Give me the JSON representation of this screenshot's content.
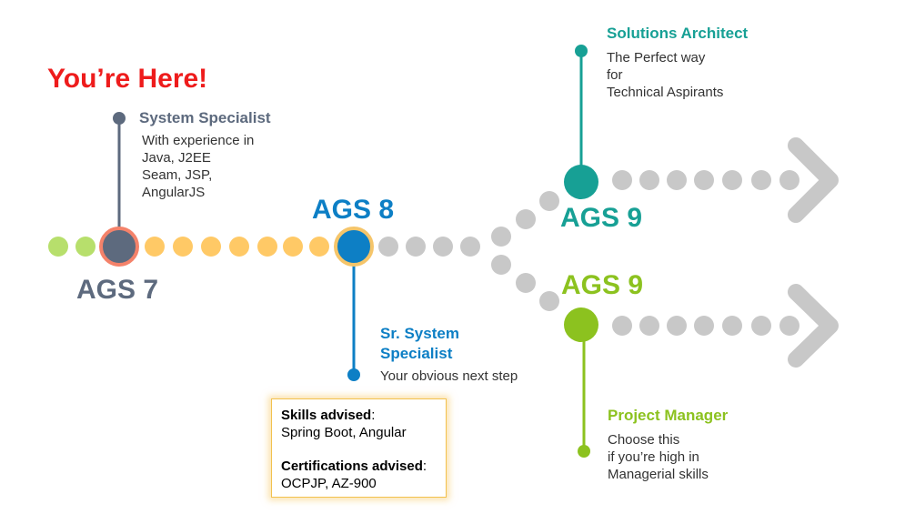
{
  "colors": {
    "current": "#5d6a7e",
    "current_ring": "#f4826a",
    "done": "#b7df6c",
    "progress": "#ffc966",
    "next": "#0d7fc5",
    "next_ring": "#f5c56a",
    "future": "#c8c8c8",
    "architect": "#17a095",
    "manager": "#8cc21f",
    "here": "#ee1c1c"
  },
  "you_are_here": "You’re Here!",
  "stages": {
    "ags7": {
      "label": "AGS 7",
      "role": "System Specialist",
      "description": "With experience in\nJava, J2EE\nSeam, JSP,\nAngularJS"
    },
    "ags8": {
      "label": "AGS 8",
      "role": "Sr. System\nSpecialist",
      "description": "Your obvious next step"
    },
    "ags9_architect": {
      "label": "AGS 9",
      "role": "Solutions Architect",
      "description": "The Perfect way\nfor\nTechnical Aspirants"
    },
    "ags9_manager": {
      "label": "AGS 9",
      "role": "Project Manager",
      "description": "Choose this\nif you’re high in\nManagerial skills"
    }
  },
  "advice": {
    "skills_title": "Skills advised",
    "skills": "Spring Boot, Angular",
    "certs_title": "Certifications advised",
    "certs": "OCPJP, AZ-900",
    "separator": ":"
  }
}
